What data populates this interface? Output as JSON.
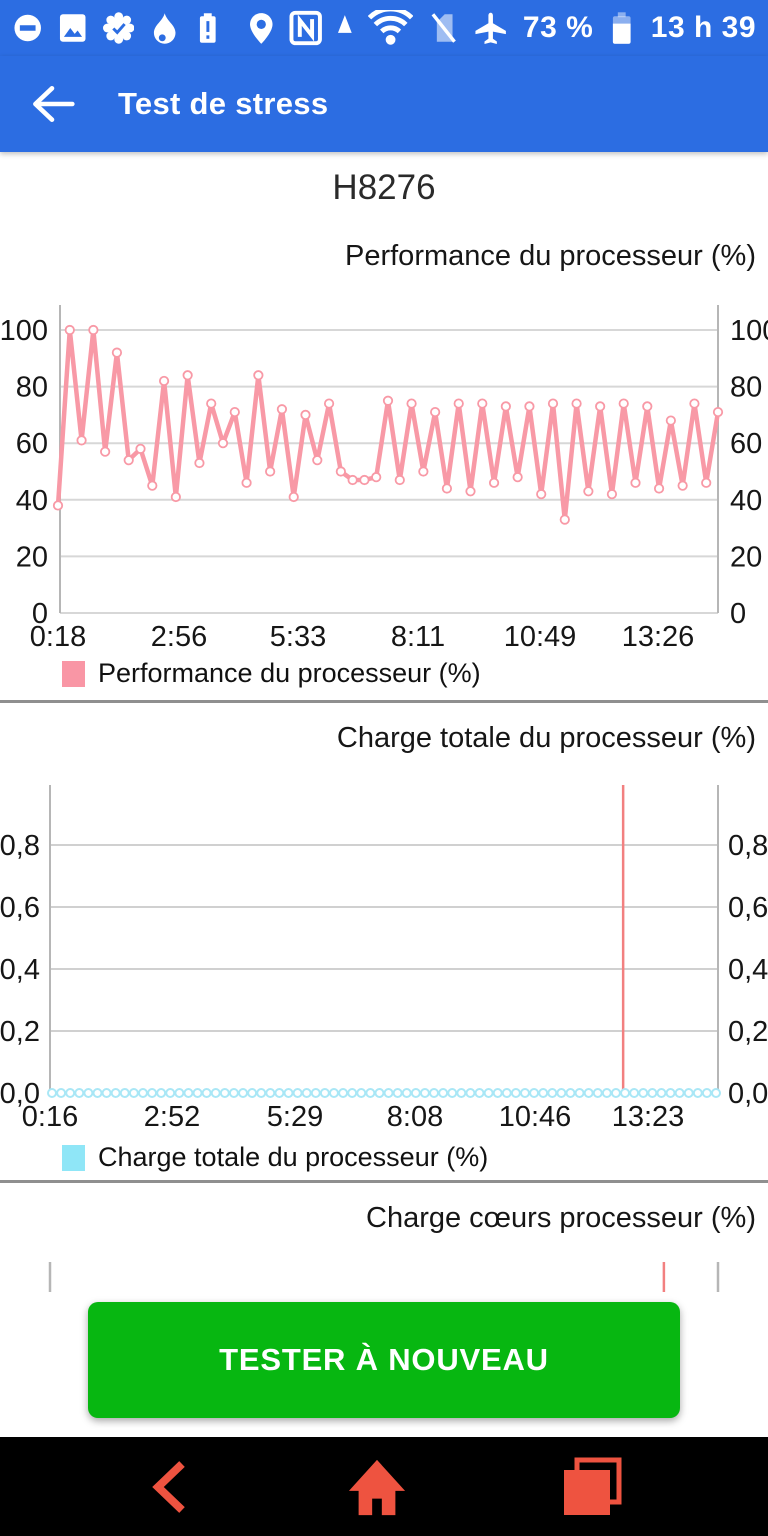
{
  "status_bar": {
    "battery_text": "73 %",
    "time": "13 h 39",
    "icons": [
      "do-not-disturb",
      "screenshot",
      "verified-badge",
      "flame",
      "battery-alert",
      "location-pin",
      "nfc",
      "vpn-triangle",
      "wifi",
      "no-sim",
      "airplane-mode",
      "battery-level"
    ]
  },
  "app_bar": {
    "title": "Test de stress"
  },
  "device": {
    "model": "H8276"
  },
  "chart_data": [
    {
      "type": "line",
      "title": "Performance du processeur (%)",
      "legend": "Performance du processeur (%)",
      "line_color": "#f899a6",
      "marker": "open-circle",
      "grid": true,
      "ylim": [
        0,
        108
      ],
      "y_ticks": [
        0,
        20,
        40,
        60,
        80,
        100
      ],
      "x_tick_labels": [
        "0:18",
        "2:56",
        "5:33",
        "8:11",
        "10:49",
        "13:26"
      ],
      "series": [
        {
          "name": "Performance du processeur (%)",
          "values": [
            38,
            100,
            61,
            100,
            57,
            92,
            54,
            58,
            45,
            82,
            41,
            84,
            53,
            74,
            60,
            71,
            46,
            84,
            50,
            72,
            41,
            70,
            54,
            74,
            50,
            47,
            47,
            48,
            75,
            47,
            74,
            50,
            71,
            44,
            74,
            43,
            74,
            46,
            73,
            48,
            73,
            42,
            74,
            33,
            74,
            43,
            73,
            42,
            74,
            46,
            73,
            44,
            68,
            45,
            74,
            46,
            71
          ]
        }
      ]
    },
    {
      "type": "line",
      "title": "Charge totale du processeur (%)",
      "legend": "Charge totale du processeur (%)",
      "line_color": "#f5b3c0",
      "marker_color": "#a9e7f6",
      "grid": true,
      "ylim": [
        0,
        1
      ],
      "y_ticks": [
        0,
        0.2,
        0.4,
        0.6,
        0.8
      ],
      "y_tick_labels": [
        "0,0",
        "0,2",
        "0,4",
        "0,6",
        "0,8"
      ],
      "x_tick_labels": [
        "0:16",
        "2:52",
        "5:29",
        "8:08",
        "10:46",
        "13:23"
      ],
      "series": [
        {
          "name": "Charge totale du processeur (%)",
          "constant_value": 0,
          "point_count": 74
        }
      ],
      "event_line": {
        "color": "#f28080",
        "x_fraction": 0.858
      }
    },
    {
      "type": "line",
      "title": "Charge cœurs processeur (%)",
      "partial": true,
      "event_line": {
        "color": "#f28080",
        "x_fraction": 0.919
      }
    }
  ],
  "action": {
    "retest_label": "TESTER À NOUVEAU"
  },
  "colors": {
    "primary_blue": "#2c6de2",
    "button_green": "#07b711",
    "nav_icon_red": "#ee5340",
    "line_pink": "#f899a6",
    "legend_cyan": "#8fe6f7",
    "event_red": "#f28080"
  }
}
